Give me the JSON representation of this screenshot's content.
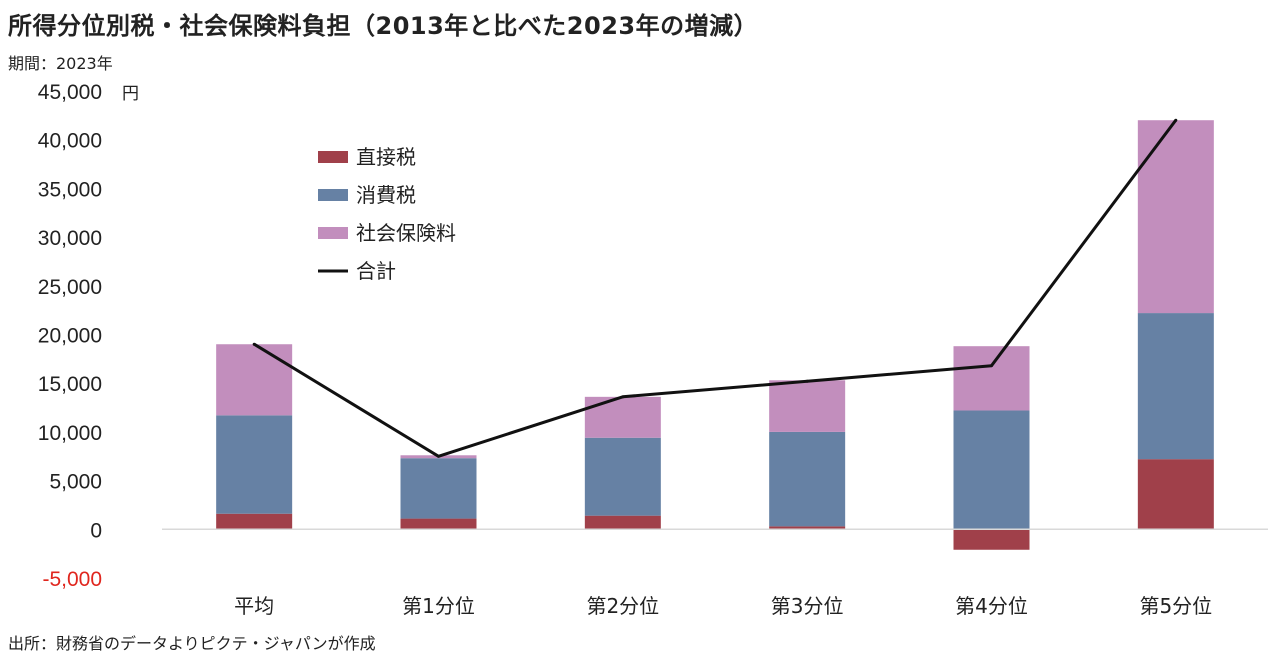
{
  "header": {
    "title": "所得分位別税・社会保険料負担（2013年と比べた2023年の増減）",
    "period": "期間：2023年"
  },
  "footer": {
    "source": "出所：財務省のデータよりピクテ・ジャパンが作成"
  },
  "chart_data": {
    "type": "bar",
    "stacked": true,
    "categories": [
      "平均",
      "第1分位",
      "第2分位",
      "第3分位",
      "第4分位",
      "第5分位"
    ],
    "series": [
      {
        "name": "直接税",
        "type": "bar",
        "color": "#a0404a",
        "values": [
          1600,
          1100,
          1400,
          300,
          -2100,
          7200
        ]
      },
      {
        "name": "消費税",
        "type": "bar",
        "color": "#6681a4",
        "values": [
          10100,
          6200,
          8000,
          9700,
          12200,
          15000
        ]
      },
      {
        "name": "社会保険料",
        "type": "bar",
        "color": "#c28ebd",
        "values": [
          7300,
          300,
          4200,
          5300,
          6600,
          19800
        ]
      },
      {
        "name": "合計",
        "type": "line",
        "color": "#111111",
        "values": [
          19000,
          7500,
          13600,
          15200,
          16800,
          42000
        ]
      }
    ],
    "y_unit": "円",
    "ylim": [
      -5000,
      45000
    ],
    "yticks": [
      {
        "value": 45000,
        "label": "45,000"
      },
      {
        "value": 40000,
        "label": "40,000"
      },
      {
        "value": 35000,
        "label": "35,000"
      },
      {
        "value": 30000,
        "label": "30,000"
      },
      {
        "value": 25000,
        "label": "25,000"
      },
      {
        "value": 20000,
        "label": "20,000"
      },
      {
        "value": 15000,
        "label": "15,000"
      },
      {
        "value": 10000,
        "label": "10,000"
      },
      {
        "value": 5000,
        "label": "5,000"
      },
      {
        "value": 0,
        "label": "0"
      },
      {
        "value": -5000,
        "label": "-5,000"
      }
    ],
    "negative_tick_color": "#e0261e",
    "grid": false,
    "legend_position": "top-left"
  }
}
